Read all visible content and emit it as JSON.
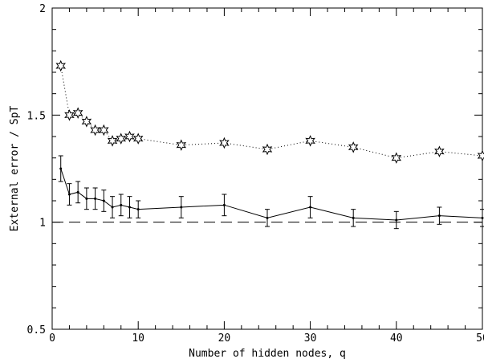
{
  "chart_data": {
    "type": "line",
    "title": "",
    "xlabel": "Number of hidden nodes, q",
    "ylabel": "External error / SpT",
    "xlim": [
      0,
      50
    ],
    "ylim": [
      0.5,
      2
    ],
    "xticks": [
      0,
      10,
      20,
      30,
      40,
      50
    ],
    "yticks": [
      0.5,
      1,
      1.5,
      2
    ],
    "xtick_labels": [
      "0",
      "10",
      "20",
      "30",
      "40",
      "50"
    ],
    "ytick_labels": [
      "0.5",
      "1",
      "1.5",
      "2"
    ],
    "grid": false,
    "reference_line": {
      "y": 1.0,
      "style": "dashed"
    },
    "series": [
      {
        "style": "dotted",
        "marker": "star",
        "x": [
          1,
          2,
          3,
          4,
          5,
          6,
          7,
          8,
          9,
          10,
          15,
          20,
          25,
          30,
          35,
          40,
          45,
          50
        ],
        "y": [
          1.73,
          1.5,
          1.51,
          1.47,
          1.43,
          1.43,
          1.38,
          1.39,
          1.4,
          1.39,
          1.36,
          1.37,
          1.34,
          1.38,
          1.35,
          1.3,
          1.33,
          1.31
        ]
      },
      {
        "style": "solid",
        "marker": "errorbar",
        "x": [
          1,
          2,
          3,
          4,
          5,
          6,
          7,
          8,
          9,
          10,
          15,
          20,
          25,
          30,
          35,
          40,
          45,
          50
        ],
        "y": [
          1.25,
          1.13,
          1.14,
          1.11,
          1.11,
          1.1,
          1.07,
          1.08,
          1.07,
          1.06,
          1.07,
          1.08,
          1.02,
          1.07,
          1.02,
          1.01,
          1.03,
          1.02
        ],
        "err": [
          0.06,
          0.05,
          0.05,
          0.05,
          0.05,
          0.05,
          0.05,
          0.05,
          0.05,
          0.04,
          0.05,
          0.05,
          0.04,
          0.05,
          0.04,
          0.04,
          0.04,
          0.04
        ]
      }
    ]
  }
}
